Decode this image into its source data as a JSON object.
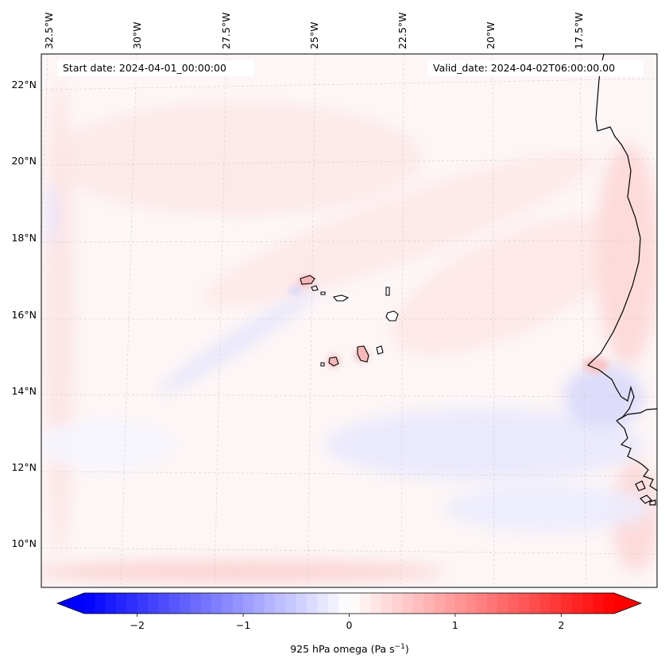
{
  "map": {
    "start_date_label": "Start date: 2024-04-01_00:00:00",
    "valid_date_label": "Valid_date: 2024-04-02T06:00:00.00",
    "lon_labels": [
      "32.5°W",
      "30°W",
      "27.5°W",
      "25°W",
      "22.5°W",
      "20°W",
      "17.5°W"
    ],
    "lat_labels": [
      "22°N",
      "20°N",
      "18°N",
      "16°N",
      "14°N",
      "12°N",
      "10°N"
    ],
    "extent": {
      "lon_min": -33.0,
      "lon_max": -15.5,
      "lat_min": 8.8,
      "lat_max": 22.8
    },
    "feature_names": [
      "coastline-africa",
      "cape-verde-islands"
    ]
  },
  "colorbar": {
    "label": "925 hPa omega (Pa s",
    "label_exponent": "−1",
    "label_close": ")",
    "tick_labels": [
      "−2",
      "−1",
      "0",
      "1",
      "2"
    ],
    "tick_values": [
      -2,
      -1,
      0,
      1,
      2
    ],
    "range": [
      -2.5,
      2.5
    ],
    "colormap": "bwr",
    "low_color": "#0000ff",
    "mid_color": "#ffffff",
    "high_color": "#ff0000",
    "extend": "both"
  }
}
